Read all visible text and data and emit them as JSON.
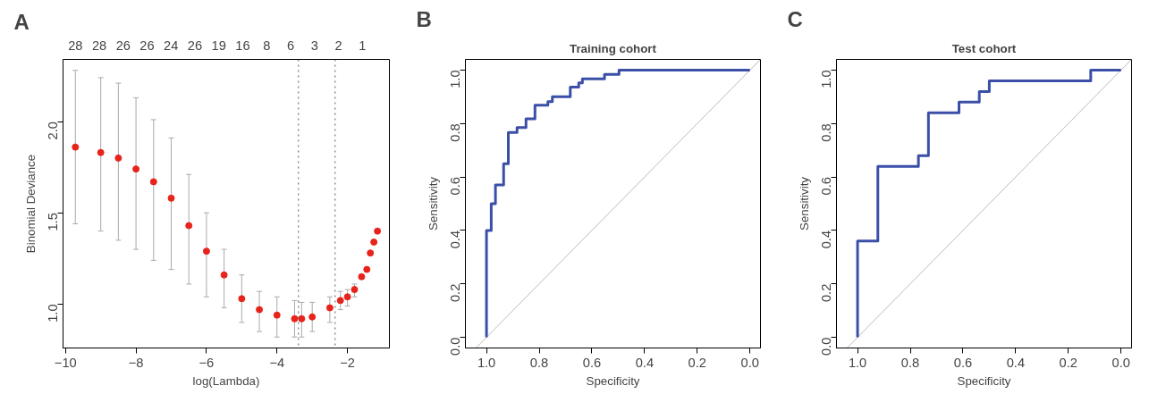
{
  "chart_data": [
    {
      "type": "scatter",
      "xlabel": "log(Lambda)",
      "ylabel": "Binomial Deviance",
      "marker": "circle",
      "grid": false,
      "annotations": [
        "A",
        "28",
        "28",
        "26",
        "26",
        "24",
        "26",
        "19",
        "16",
        "8",
        "6",
        "3",
        "2",
        "1"
      ],
      "xlim": [
        -10.07,
        -0.81
      ],
      "ylim": [
        0.76,
        2.34
      ],
      "xticks": [
        -10,
        -8,
        -6,
        -4,
        -2
      ],
      "yticks": [
        {
          "value": 1.0,
          "label": "1.0"
        },
        {
          "value": 1.5,
          "label": "1.5"
        },
        {
          "value": 2.0,
          "label": "2.0"
        }
      ],
      "ref_lines": [
        {
          "axis": "x",
          "value": -3.39,
          "color": "#555555",
          "line_style": "dotted"
        },
        {
          "axis": "x",
          "value": -2.35,
          "color": "#555555",
          "line_style": "dotted"
        }
      ],
      "series": [
        {
          "color": "#e8231b",
          "x": [
            -9.72,
            -9,
            -8.5,
            -8,
            -7.5,
            -7,
            -6.5,
            -6,
            -5.5,
            -5,
            -4.5,
            -4,
            -3.5,
            -3.3,
            -3,
            -2.5,
            -2.2,
            -2,
            -1.8,
            -1.6,
            -1.45,
            -1.35,
            -1.25,
            -1.15
          ],
          "values": [
            1.86,
            1.83,
            1.8,
            1.74,
            1.67,
            1.58,
            1.43,
            1.29,
            1.16,
            1.03,
            0.97,
            0.94,
            0.92,
            0.92,
            0.93,
            0.98,
            1.02,
            1.04,
            1.08,
            1.15,
            1.19,
            1.28,
            1.34,
            1.4
          ],
          "errors": [
            [
              1.44,
              2.28
            ],
            [
              1.4,
              2.24
            ],
            [
              1.35,
              2.21
            ],
            [
              1.3,
              2.13
            ],
            [
              1.24,
              2.01
            ],
            [
              1.19,
              1.91
            ],
            [
              1.11,
              1.71
            ],
            [
              1.04,
              1.5
            ],
            [
              0.98,
              1.3
            ],
            [
              0.9,
              1.16
            ],
            [
              0.85,
              1.07
            ],
            [
              0.82,
              1.04
            ],
            [
              0.82,
              1.02
            ],
            [
              0.82,
              1.01
            ],
            [
              0.85,
              1.01
            ],
            [
              0.9,
              1.04
            ],
            [
              0.97,
              1.07
            ],
            [
              0.99,
              1.08
            ],
            [
              1.04,
              1.11
            ],
            null,
            null,
            null,
            null,
            null
          ]
        }
      ]
    },
    {
      "type": "line",
      "title": "Training cohort",
      "annotations": [
        "B"
      ],
      "xlabel": "Specificity",
      "ylabel": "Sensitivity",
      "marker": "none",
      "line_style": "solid",
      "grid": false,
      "xlim": [
        1.08,
        -0.04
      ],
      "ylim": [
        -0.04,
        1.04
      ],
      "xticks": [
        {
          "value": 1.0,
          "label": "1.0"
        },
        {
          "value": 0.8,
          "label": "0.8"
        },
        {
          "value": 0.6,
          "label": "0.6"
        },
        {
          "value": 0.4,
          "label": "0.4"
        },
        {
          "value": 0.2,
          "label": "0.2"
        },
        {
          "value": 0.0,
          "label": "0.0"
        }
      ],
      "yticks": [
        {
          "value": 0.0,
          "label": "0.0"
        },
        {
          "value": 0.2,
          "label": "0.2"
        },
        {
          "value": 0.4,
          "label": "0.4"
        },
        {
          "value": 0.6,
          "label": "0.6"
        },
        {
          "value": 0.8,
          "label": "0.8"
        },
        {
          "value": 1.0,
          "label": "1.0"
        }
      ],
      "series": [
        {
          "color": "#bbbbbb",
          "x": [
            1.04,
            -0.04
          ],
          "values": [
            -0.04,
            1.04
          ]
        },
        {
          "color": "#3b4fa8",
          "x": [
            1.0,
            1.0,
            0.982,
            0.982,
            0.966,
            0.966,
            0.935,
            0.935,
            0.917,
            0.917,
            0.884,
            0.884,
            0.85,
            0.85,
            0.816,
            0.816,
            0.767,
            0.767,
            0.75,
            0.75,
            0.682,
            0.682,
            0.65,
            0.65,
            0.636,
            0.636,
            0.552,
            0.552,
            0.497,
            0.497,
            0.0
          ],
          "values": [
            0.0,
            0.4,
            0.4,
            0.5,
            0.5,
            0.57,
            0.57,
            0.65,
            0.65,
            0.767,
            0.767,
            0.785,
            0.785,
            0.818,
            0.818,
            0.869,
            0.869,
            0.882,
            0.882,
            0.9,
            0.9,
            0.936,
            0.936,
            0.952,
            0.952,
            0.967,
            0.967,
            0.984,
            0.984,
            1.0,
            1.0
          ]
        }
      ]
    },
    {
      "type": "line",
      "title": "Test cohort",
      "annotations": [
        "C"
      ],
      "xlabel": "Specificity",
      "ylabel": "Sensitivity",
      "marker": "none",
      "line_style": "solid",
      "grid": false,
      "xlim": [
        1.08,
        -0.04
      ],
      "ylim": [
        -0.04,
        1.04
      ],
      "xticks": [
        {
          "value": 1.0,
          "label": "1.0"
        },
        {
          "value": 0.8,
          "label": "0.8"
        },
        {
          "value": 0.6,
          "label": "0.6"
        },
        {
          "value": 0.4,
          "label": "0.4"
        },
        {
          "value": 0.2,
          "label": "0.2"
        },
        {
          "value": 0.0,
          "label": "0.0"
        }
      ],
      "yticks": [
        {
          "value": 0.0,
          "label": "0.0"
        },
        {
          "value": 0.2,
          "label": "0.2"
        },
        {
          "value": 0.4,
          "label": "0.4"
        },
        {
          "value": 0.6,
          "label": "0.6"
        },
        {
          "value": 0.8,
          "label": "0.8"
        },
        {
          "value": 1.0,
          "label": "1.0"
        }
      ],
      "series": [
        {
          "color": "#bbbbbb",
          "x": [
            1.04,
            -0.04
          ],
          "values": [
            -0.04,
            1.04
          ]
        },
        {
          "color": "#3b4fa8",
          "x": [
            1.0,
            1.0,
            0.923,
            0.923,
            0.769,
            0.769,
            0.731,
            0.731,
            0.615,
            0.615,
            0.538,
            0.538,
            0.5,
            0.5,
            0.115,
            0.115,
            0.0
          ],
          "values": [
            0.0,
            0.36,
            0.36,
            0.64,
            0.64,
            0.68,
            0.68,
            0.84,
            0.84,
            0.88,
            0.88,
            0.92,
            0.92,
            0.96,
            0.96,
            1.0,
            1.0
          ]
        }
      ]
    }
  ]
}
